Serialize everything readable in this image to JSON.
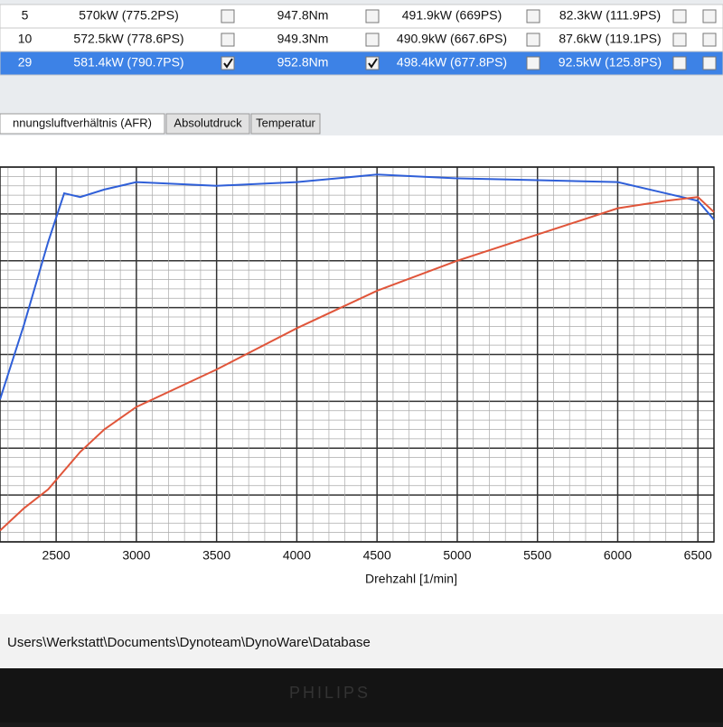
{
  "table": {
    "rows": [
      {
        "cells": [
          "5",
          "570kW (775.2PS)",
          "947.8Nm",
          "491.9kW (669PS)",
          "82.3kW (111.9PS)"
        ],
        "checks": [
          false,
          false,
          false,
          false,
          false
        ],
        "selected": false
      },
      {
        "cells": [
          "10",
          "572.5kW (778.6PS)",
          "949.3Nm",
          "490.9kW (667.6PS)",
          "87.6kW (119.1PS)"
        ],
        "checks": [
          false,
          false,
          false,
          false,
          false
        ],
        "selected": false
      },
      {
        "cells": [
          "29",
          "581.4kW (790.7PS)",
          "952.8Nm",
          "498.4kW (677.8PS)",
          "92.5kW (125.8PS)"
        ],
        "checks": [
          true,
          true,
          false,
          false,
          false
        ],
        "selected": true
      }
    ]
  },
  "tabs": [
    "nnungsluftverhältnis (AFR)",
    "Absolutdruck",
    "Temperatur"
  ],
  "chart_data": {
    "type": "line",
    "x_label": "Drehzahl [1/min]",
    "x": [
      2150,
      2300,
      2450,
      2550,
      2650,
      2800,
      3000,
      3500,
      4000,
      4250,
      4500,
      5000,
      5500,
      6000,
      6300,
      6500,
      6600
    ],
    "series": [
      {
        "color": "#2f5fd8",
        "values": [
          38,
          58,
          80,
          93,
          92,
          94,
          96,
          95,
          96,
          97,
          98,
          97,
          96.5,
          96,
          93,
          91,
          86
        ]
      },
      {
        "color": "#e0553a",
        "values": [
          3,
          9,
          14,
          19,
          24,
          30,
          36,
          46,
          57,
          62,
          67,
          75,
          82,
          89,
          91,
          92,
          88
        ]
      }
    ],
    "xlim": [
      2150,
      6600
    ],
    "ylim": [
      0,
      100
    ],
    "xticks": [
      2500,
      3000,
      3500,
      4000,
      4500,
      5000,
      5500,
      6000,
      6500
    ],
    "grid": true
  },
  "status_path": "Users\\Werkstatt\\Documents\\Dynoteam\\DynoWare\\Database",
  "monitor_brand": "PHILIPS"
}
